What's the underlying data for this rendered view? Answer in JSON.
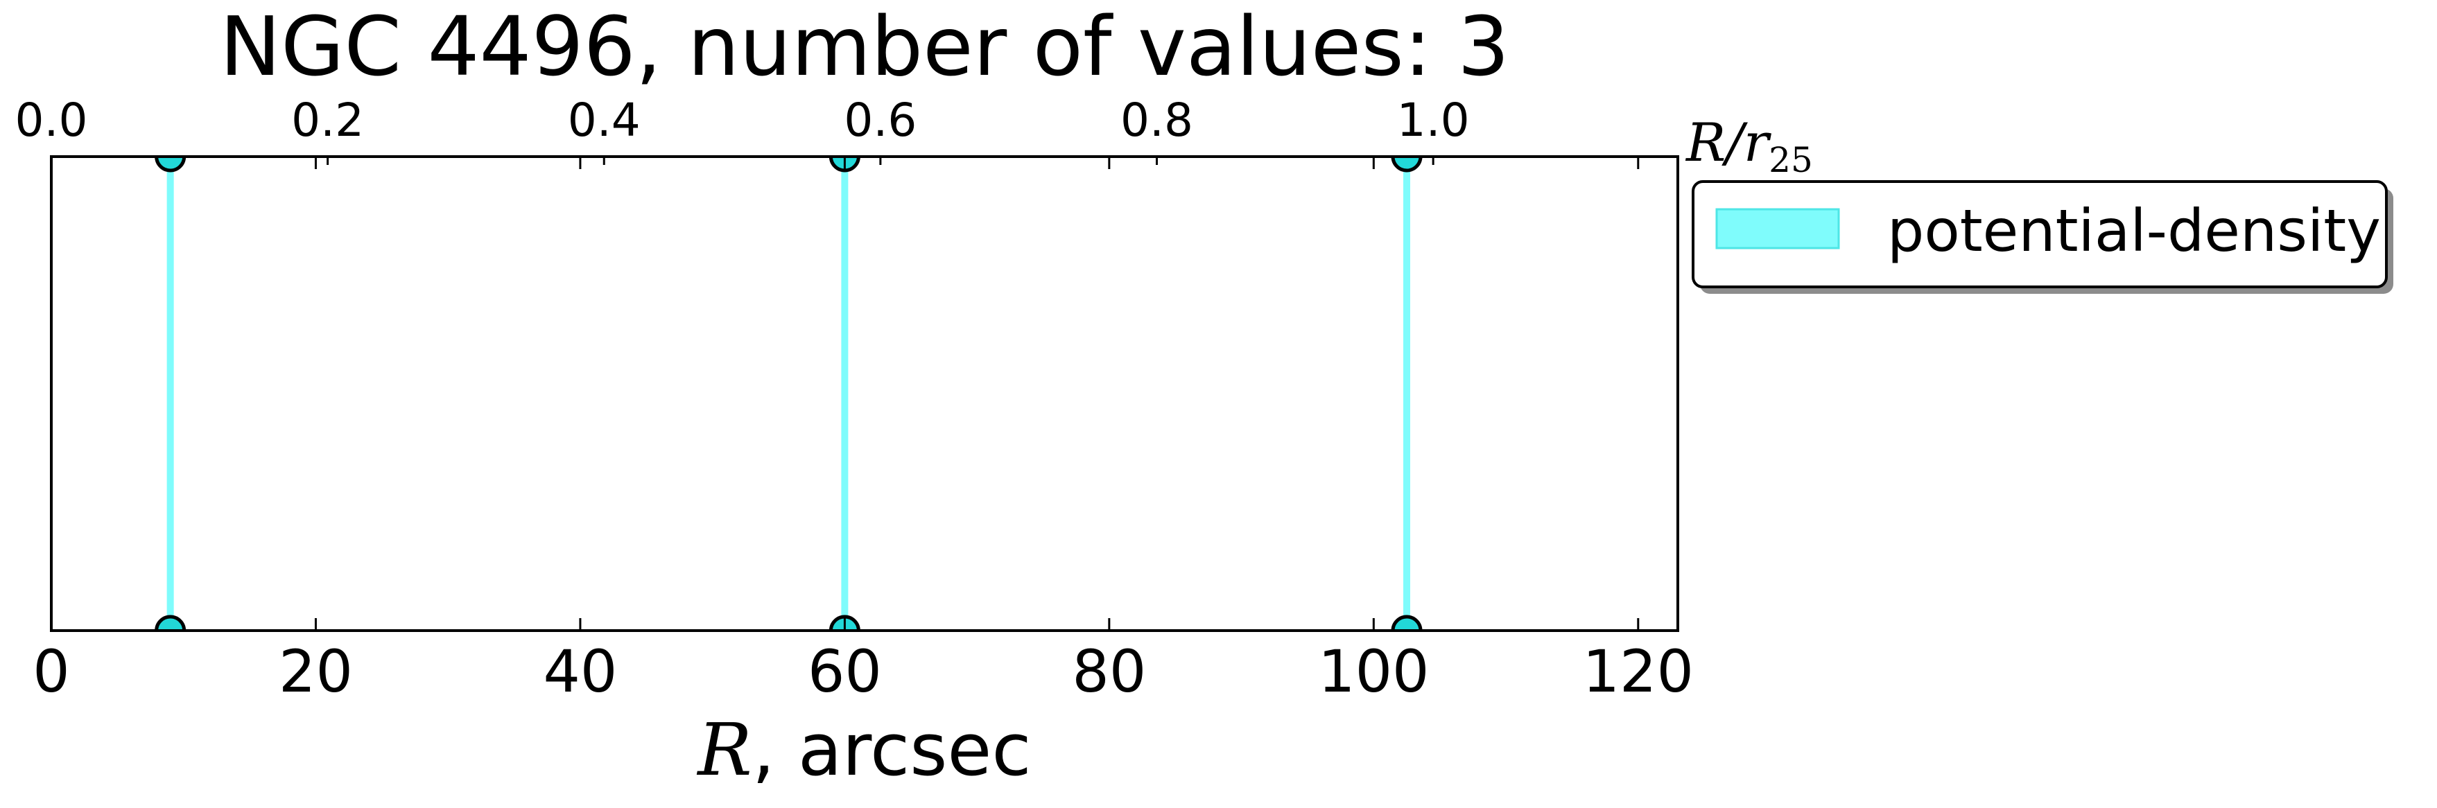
{
  "chart_data": {
    "type": "line",
    "title": "NGC 4496, number of values: 3",
    "xlabel_var": "R",
    "xlabel_rest": ", arcsec",
    "xlim": [
      0,
      123
    ],
    "ylim": [
      0,
      1
    ],
    "xticks": [
      0,
      20,
      40,
      60,
      80,
      100,
      120
    ],
    "top_axis": {
      "label_var": "R/r",
      "label_sub": "25",
      "scale_arcsec_per_unit": 104.5,
      "ticks": [
        "0.0",
        "0.2",
        "0.4",
        "0.6",
        "0.8",
        "1.0"
      ],
      "tick_values": [
        0.0,
        0.2,
        0.4,
        0.6,
        0.8,
        1.0
      ]
    },
    "series": [
      {
        "name": "potential-density",
        "color": "#7ffcfc",
        "marker_fill": "#22d8d8",
        "x": [
          9,
          60,
          102.5
        ]
      }
    ],
    "legend": {
      "placement": "outside-top-right",
      "entries": [
        "potential-density"
      ]
    },
    "grid": false
  }
}
